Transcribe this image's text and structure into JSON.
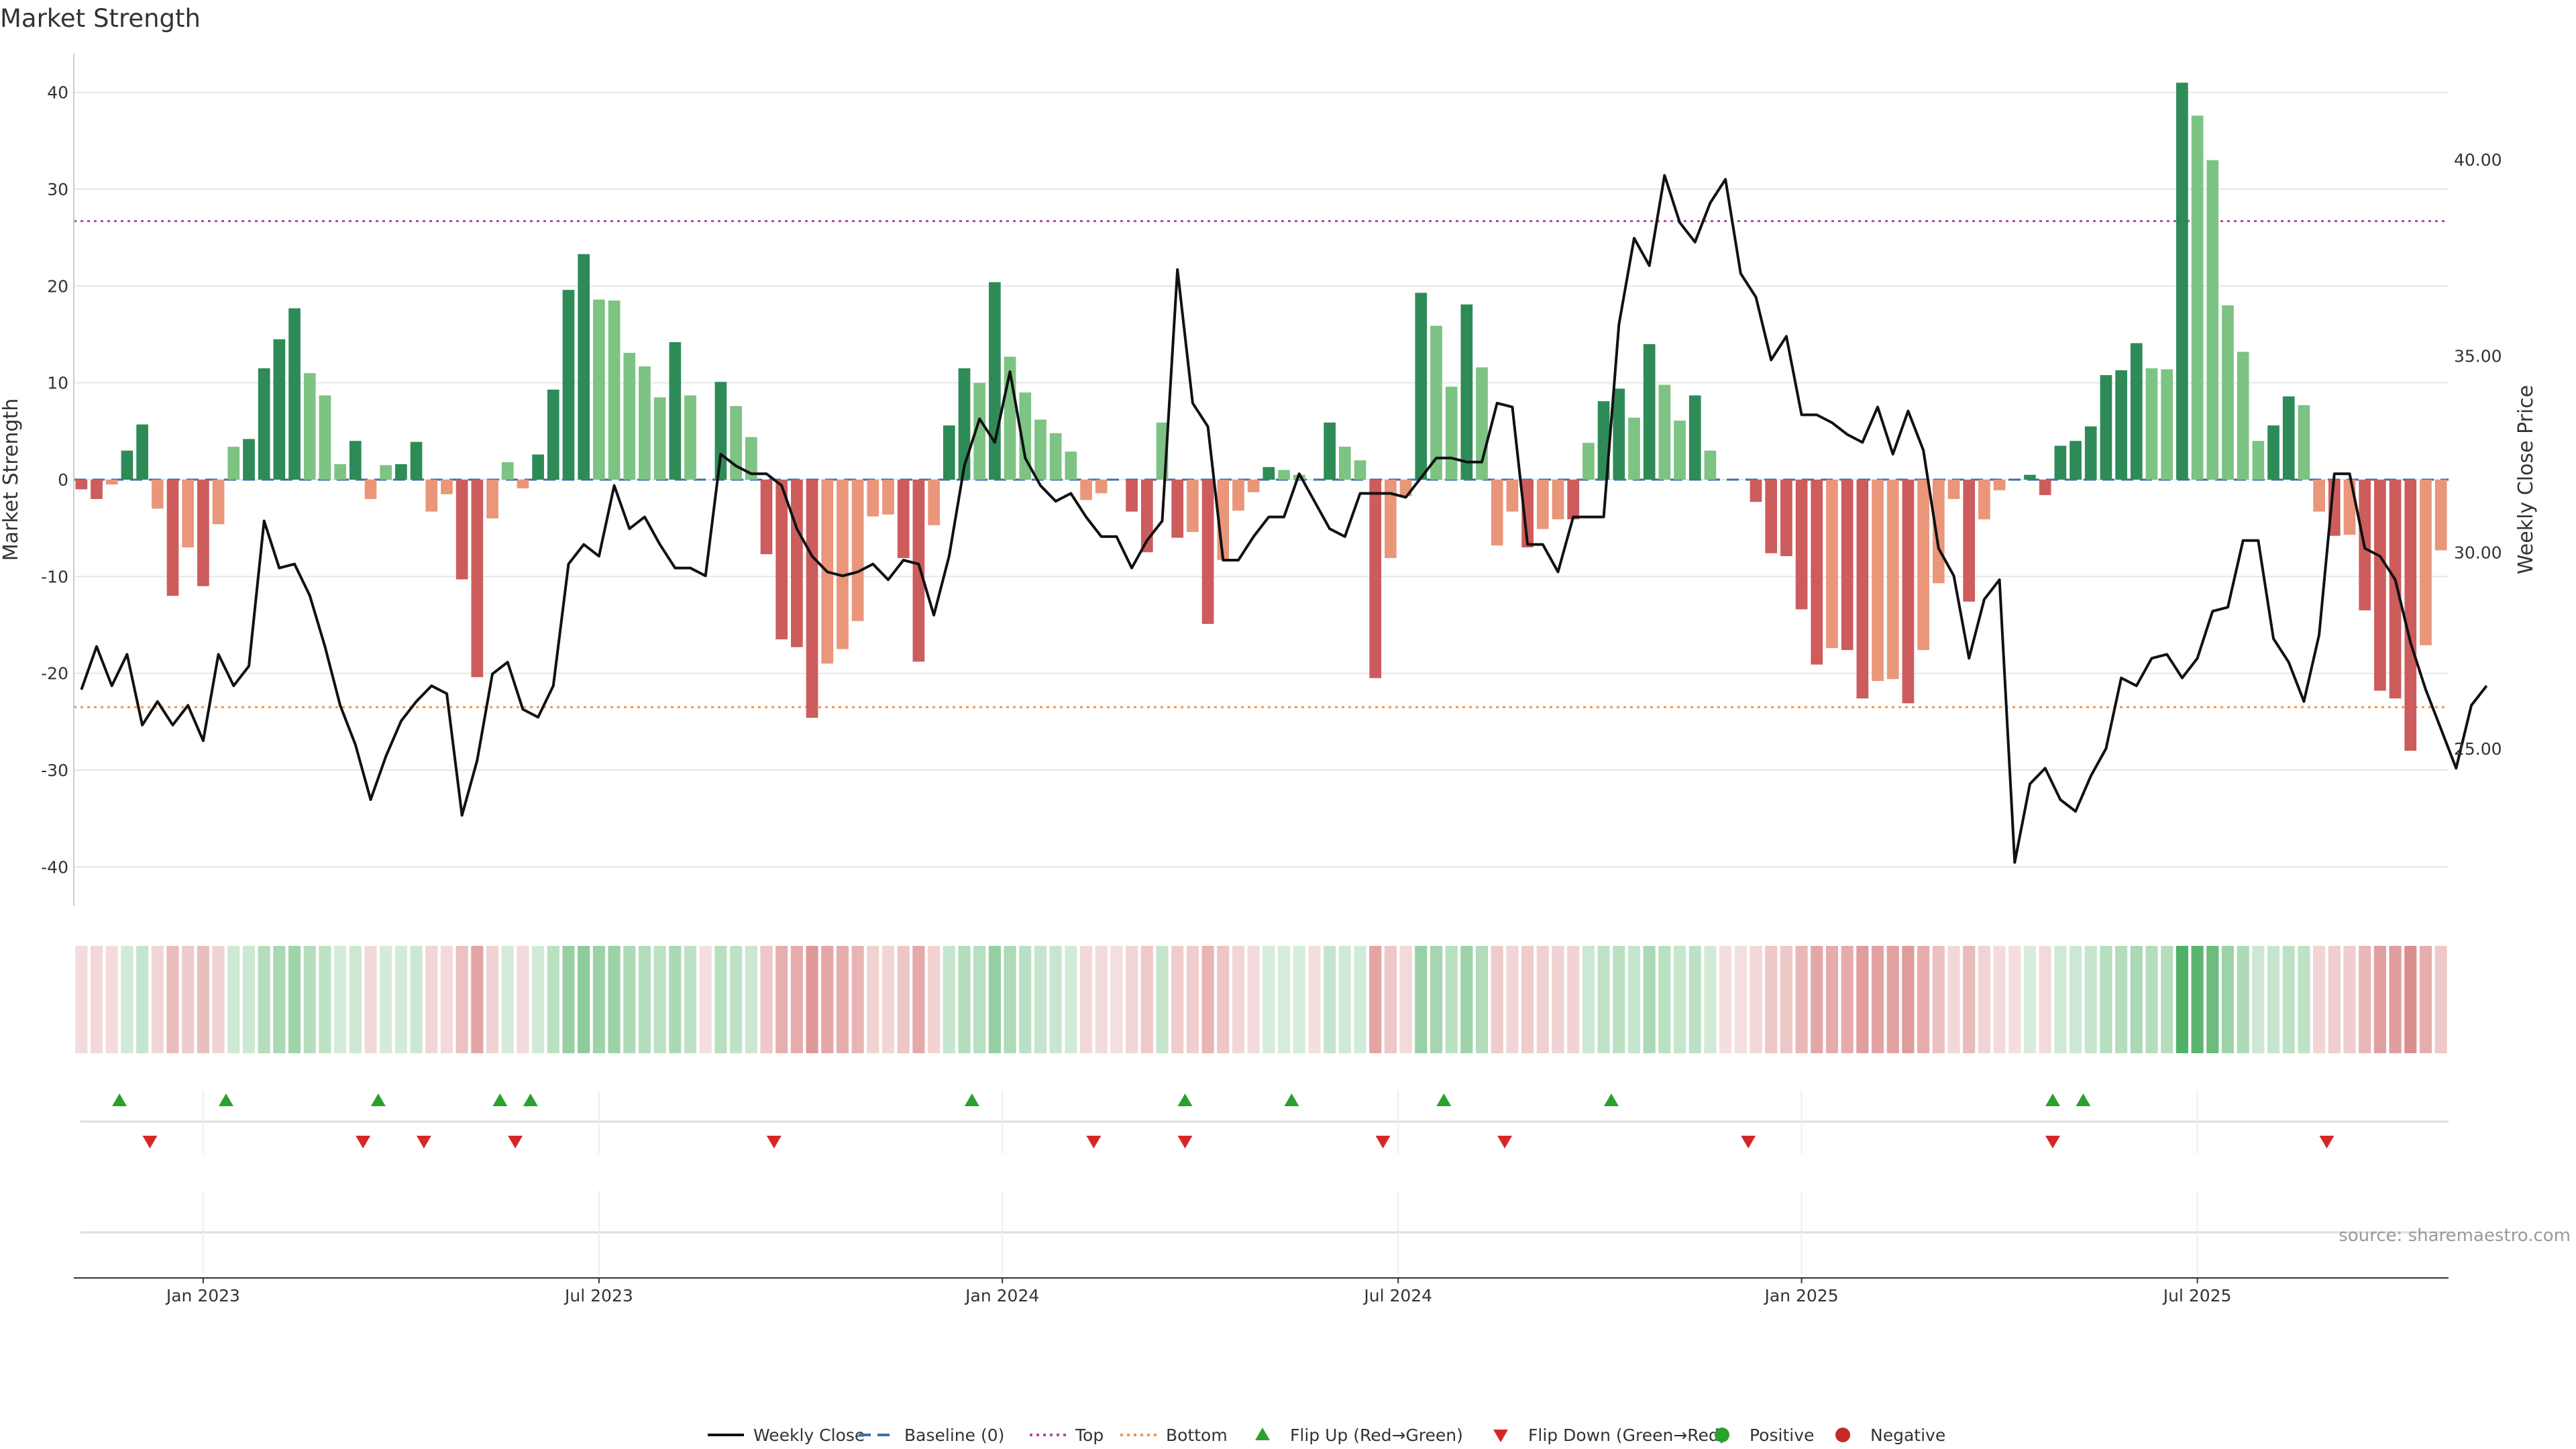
{
  "chart_data": {
    "type": "bar",
    "title": "Market Strength",
    "ylabel": "Market Strength",
    "y2label": "Weekly Close Price",
    "ylim": [
      -44,
      44
    ],
    "y2lim": [
      21.0,
      42.7
    ],
    "yticks": [
      40,
      30,
      20,
      10,
      0,
      -10,
      -20,
      -30,
      -40
    ],
    "y2ticks": [
      "40.00",
      "35.00",
      "30.00",
      "25.00"
    ],
    "y2tick_values": [
      40,
      35,
      30,
      25
    ],
    "xticks": [
      "Jan 2023",
      "Jul 2023",
      "Jan 2024",
      "Jul 2024",
      "Jan 2025",
      "Jul 2025"
    ],
    "xtick_weeks": [
      8,
      34,
      60.5,
      86.5,
      113,
      139
    ],
    "top_line": 26.7,
    "bottom_line": -23.5,
    "source": "source: sharemaestro.com",
    "strength": [
      -1,
      -2,
      -0.5,
      3,
      5.7,
      -3,
      -12,
      -7,
      -11,
      -4.6,
      3.4,
      4.2,
      11.5,
      14.5,
      17.7,
      11,
      8.7,
      1.6,
      4,
      -2,
      1.5,
      1.6,
      3.9,
      -3.3,
      -1.5,
      -10.3,
      -20.4,
      -4,
      1.8,
      -0.9,
      2.6,
      9.3,
      19.6,
      23.3,
      18.6,
      18.5,
      13.1,
      11.7,
      8.5,
      14.2,
      8.7,
      0,
      10.1,
      7.6,
      4.4,
      -7.7,
      -16.5,
      -17.3,
      -24.6,
      -19,
      -17.5,
      -14.6,
      -3.8,
      -3.6,
      -8.1,
      -18.8,
      -4.7,
      5.6,
      11.5,
      10,
      20.4,
      12.7,
      9,
      6.2,
      4.8,
      2.9,
      -2.1,
      -1.4,
      0,
      -3.3,
      -7.5,
      5.9,
      -6,
      -5.4,
      -14.9,
      -8.3,
      -3.2,
      -1.3,
      1.3,
      1,
      0.5,
      0,
      5.9,
      3.4,
      2,
      -20.5,
      -8.1,
      -1.7,
      19.3,
      15.9,
      9.6,
      18.1,
      11.6,
      -6.8,
      -3.3,
      -7,
      -5.1,
      -4.1,
      -4.1,
      3.8,
      8.1,
      9.4,
      6.4,
      14,
      9.8,
      6.1,
      8.7,
      3,
      0,
      0,
      -2.3,
      -7.6,
      -7.9,
      -13.4,
      -19.1,
      -17.4,
      -17.6,
      -22.6,
      -20.8,
      -20.6,
      -23.1,
      -17.6,
      -10.7,
      -2,
      -12.6,
      -4.1,
      -1.1,
      0,
      0.5,
      -1.6,
      3.5,
      4,
      5.5,
      10.8,
      11.3,
      14.1,
      11.5,
      11.4,
      41,
      37.6,
      33,
      18,
      13.2,
      4,
      5.6,
      8.6,
      7.7,
      -3.3,
      -5.8,
      -5.7,
      -13.5,
      -21.8,
      -22.6,
      -28,
      -17.1,
      -7.3
    ],
    "close": [
      26.5,
      27.6,
      26.6,
      27.4,
      25.6,
      26.2,
      25.6,
      26.1,
      25.2,
      27.4,
      26.6,
      27.1,
      30.8,
      29.6,
      29.7,
      28.9,
      27.6,
      26.1,
      25.1,
      23.7,
      24.8,
      25.7,
      26.2,
      26.6,
      26.4,
      23.3,
      24.7,
      26.9,
      27.2,
      26,
      25.8,
      26.6,
      29.7,
      30.2,
      29.9,
      31.7,
      30.6,
      30.9,
      30.2,
      29.6,
      29.6,
      29.4,
      32.5,
      32.2,
      32,
      32,
      31.7,
      30.6,
      29.9,
      29.5,
      29.4,
      29.5,
      29.7,
      29.3,
      29.8,
      29.7,
      28.4,
      29.9,
      32.2,
      33.4,
      32.8,
      34.6,
      32.4,
      31.7,
      31.3,
      31.5,
      30.9,
      30.4,
      30.4,
      29.6,
      30.3,
      30.8,
      37.2,
      33.8,
      33.2,
      29.8,
      29.8,
      30.4,
      30.9,
      30.9,
      32.0,
      31.3,
      30.6,
      30.4,
      31.5,
      31.5,
      31.5,
      31.4,
      31.9,
      32.4,
      32.4,
      32.3,
      32.3,
      33.8,
      33.7,
      30.2,
      30.2,
      29.5,
      30.9,
      30.9,
      30.9,
      35.8,
      38.0,
      37.3,
      39.6,
      38.4,
      37.9,
      38.9,
      39.5,
      37.1,
      36.5,
      34.9,
      35.5,
      33.5,
      33.5,
      33.3,
      33.0,
      32.8,
      33.7,
      32.5,
      33.6,
      32.6,
      30.1,
      29.4,
      27.3,
      28.8,
      29.3,
      22.1,
      24.1,
      24.5,
      23.7,
      23.4,
      24.3,
      25.0,
      26.8,
      26.6,
      27.3,
      27.4,
      26.8,
      27.3,
      28.5,
      28.6,
      30.3,
      30.3,
      27.8,
      27.2,
      26.2,
      27.9,
      32.0,
      32.0,
      30.1,
      29.9,
      29.3,
      27.7,
      26.5,
      25.5,
      24.5,
      26.1,
      26.6
    ]
  },
  "flips": {
    "up_weeks": [
      2.5,
      9.5,
      19.5,
      27.5,
      29.5,
      58.5,
      72.5,
      79.5,
      89.5,
      100.5,
      129.5,
      131.5
    ],
    "down_weeks": [
      4.5,
      18.5,
      22.5,
      28.5,
      45.5,
      66.5,
      72.5,
      85.5,
      93.5,
      109.5,
      129.5,
      147.5
    ]
  },
  "legend": [
    {
      "label": "Weekly Close",
      "kind": "solid",
      "color": "#111111"
    },
    {
      "label": "Baseline (0)",
      "kind": "dash",
      "color": "#3a6fb0"
    },
    {
      "label": "Top",
      "kind": "dot",
      "color": "#b0489f"
    },
    {
      "label": "Bottom",
      "kind": "dot",
      "color": "#f0954a"
    },
    {
      "label": "Flip Up (Red→Green)",
      "kind": "tri-up",
      "color": "#2ca02c"
    },
    {
      "label": "Flip Down (Green→Red)",
      "kind": "tri-down",
      "color": "#d62728"
    },
    {
      "label": "Positive",
      "kind": "dot-marker",
      "color": "#2ca02c"
    },
    {
      "label": "Negative",
      "kind": "dot-marker",
      "color": "#c62828"
    }
  ],
  "colors": {
    "pos_strong": "#2e8b57",
    "pos_light": "#7dc383",
    "neg_strong": "#cd5c5c",
    "neg_light": "#e9967a"
  }
}
